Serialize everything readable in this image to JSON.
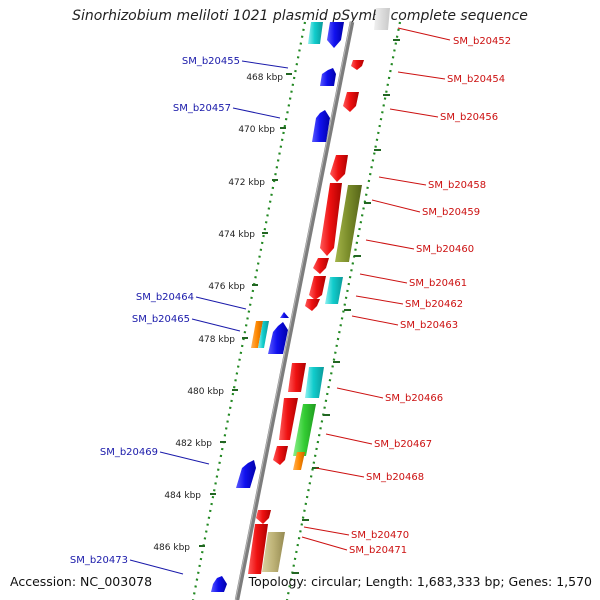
{
  "title": "Sinorhizobium meliloti 1021 plasmid pSymB, complete sequence",
  "footer": {
    "accession": "Accession: NC_003078",
    "summary": "Topology: circular; Length: 1,683,333 bp; Genes: 1,570"
  },
  "ticks": [
    "468 kbp",
    "470 kbp",
    "472 kbp",
    "474 kbp",
    "476 kbp",
    "478 kbp",
    "480 kbp",
    "482 kbp",
    "484 kbp",
    "486 kbp"
  ],
  "left_labels": [
    "SM_b20455",
    "SM_b20457",
    "SM_b20464",
    "SM_b20465",
    "SM_b20469",
    "SM_b20473"
  ],
  "right_labels": [
    "SM_b20452",
    "SM_b20454",
    "SM_b20456",
    "SM_b20458",
    "SM_b20459",
    "SM_b20460",
    "SM_b20461",
    "SM_b20462",
    "SM_b20463",
    "SM_b20466",
    "SM_b20467",
    "SM_b20468",
    "SM_b20470",
    "SM_b20471"
  ],
  "colors": {
    "forward_gene": "#ee1111",
    "reverse_gene": "#1111ee",
    "rna": "#11cccc",
    "olive": "#7a8c2a",
    "green": "#33cc33",
    "orange": "#ff8800",
    "khaki": "#bdb276",
    "backbone": "#777777",
    "dotted_track": "#228822",
    "left_label_color": "#1a1aaa",
    "right_label_color": "#cc1111"
  }
}
